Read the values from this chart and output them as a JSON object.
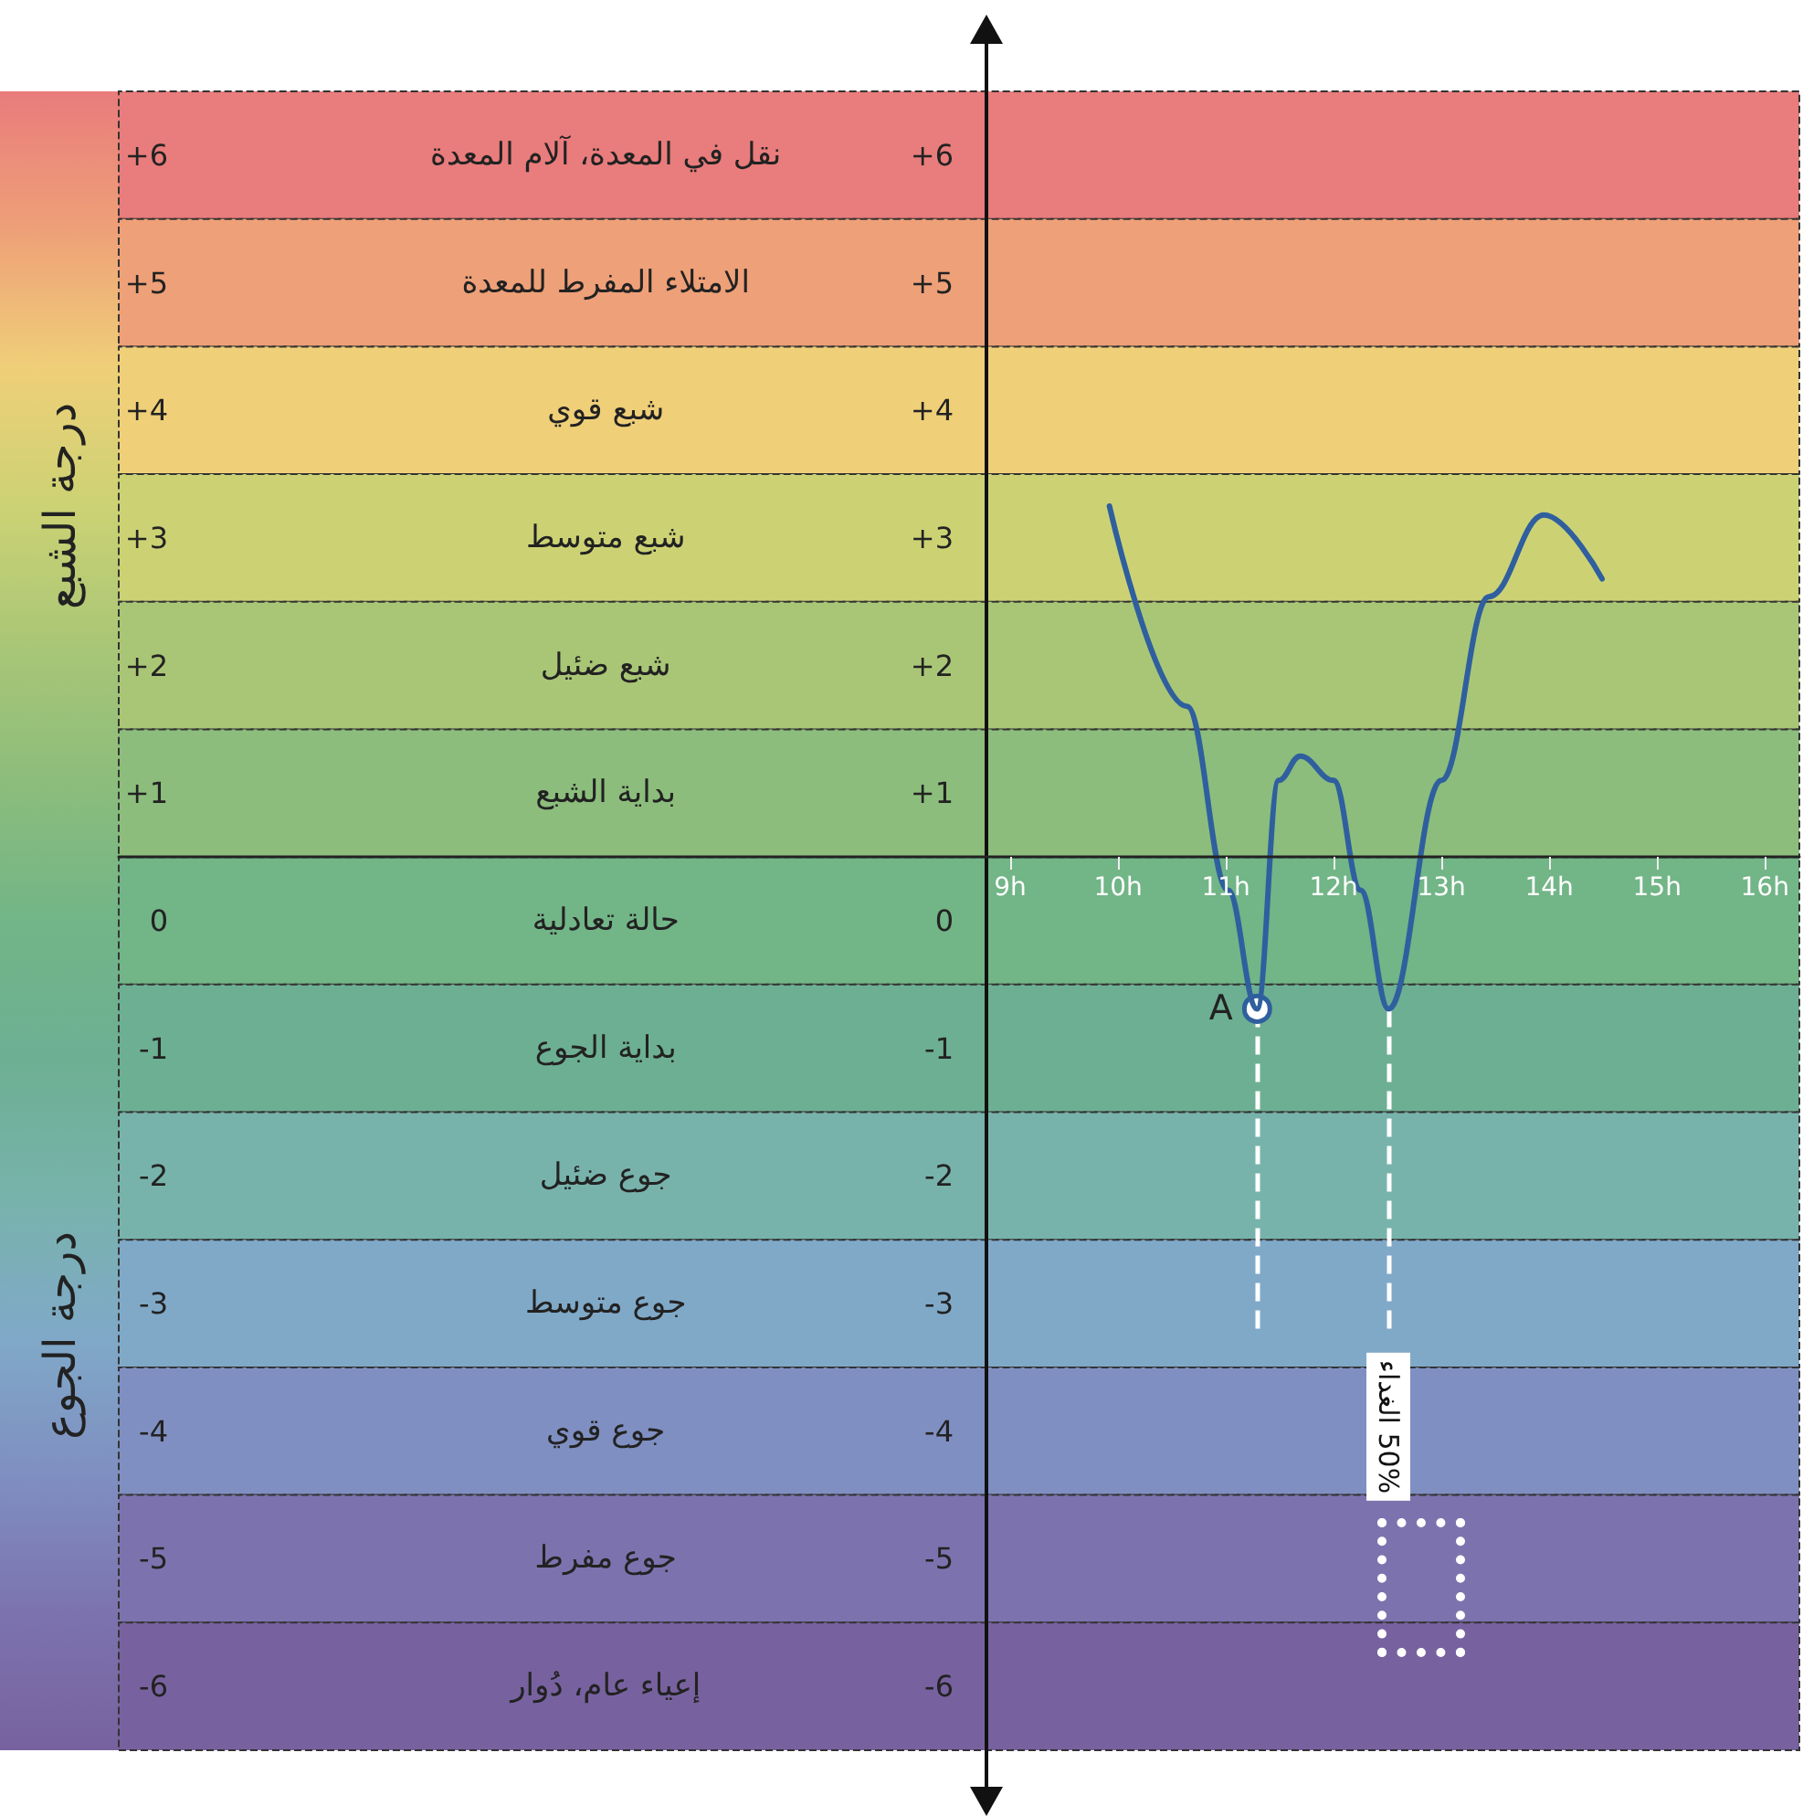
{
  "chart_data": {
    "type": "line",
    "xlim": [
      0.73,
      16.32
    ],
    "xticks": [
      {
        "value": 9,
        "label": "9h"
      },
      {
        "value": 10,
        "label": "10h"
      },
      {
        "value": 11,
        "label": "11h"
      },
      {
        "value": 12,
        "label": "12h"
      },
      {
        "value": 13,
        "label": "13h"
      },
      {
        "value": 14,
        "label": "14h"
      },
      {
        "value": 15,
        "label": "15h"
      },
      {
        "value": 16,
        "label": "16h"
      }
    ],
    "ylim": [
      -6.5,
      6.5
    ],
    "yticks": [
      {
        "value": 6,
        "label": "+6"
      },
      {
        "value": 5,
        "label": "+5"
      },
      {
        "value": 4,
        "label": "+4"
      },
      {
        "value": 3,
        "label": "+3"
      },
      {
        "value": 2,
        "label": "+2"
      },
      {
        "value": 1,
        "label": "+1"
      },
      0,
      -1,
      -2,
      -3,
      -4,
      -5,
      -6
    ],
    "y2lim": [
      -6.5,
      6.5
    ],
    "y2ticks": [
      {
        "value": 6,
        "label": "+6"
      },
      {
        "value": 5,
        "label": "+5"
      },
      {
        "value": 4,
        "label": "+4"
      },
      {
        "value": 3,
        "label": "+3"
      },
      {
        "value": 2,
        "label": "+2"
      },
      {
        "value": 1,
        "label": "+1"
      },
      0,
      -1,
      -2,
      -3,
      -4,
      -5,
      -6
    ],
    "series": [
      {
        "color": "#2f5f9e",
        "x": [
          9.92,
          10.64,
          11.02,
          11.29,
          11.49,
          11.69,
          12.0,
          12.25,
          12.51,
          13.0,
          13.44,
          13.95,
          14.49
        ],
        "values": [
          3.25,
          1.68,
          0.24,
          -0.69,
          1.1,
          1.29,
          1.1,
          0.24,
          -0.69,
          1.1,
          2.54,
          3.18,
          2.68
        ]
      }
    ],
    "marker": "none",
    "line_style": "solid",
    "grid": false,
    "annotations": [
      {
        "text": "A",
        "x": 11.29,
        "y": -0.69
      },
      "درجة الشبع",
      "درجة الجوع"
    ],
    "ref_lines": [
      {
        "axis": "x",
        "value": 11.29,
        "color": "#ffffff",
        "line_style": "dashed"
      },
      {
        "axis": "x",
        "value": 12.51,
        "color": "#ffffff",
        "line_style": "dashed",
        "label": "50% الغداء"
      }
    ],
    "bands": [
      {
        "axis": "y",
        "from": 5.5,
        "to": 6.5,
        "color": "#e97c7c",
        "label": "نقل في المعدة، آلام المعدة"
      },
      {
        "axis": "y",
        "from": 4.5,
        "to": 5.5,
        "color": "#eea078",
        "label": "الامتلاء المفرط للمعدة"
      },
      {
        "axis": "y",
        "from": 3.5,
        "to": 4.5,
        "color": "#efcf78",
        "label": "شبع قوي"
      },
      {
        "axis": "y",
        "from": 2.5,
        "to": 3.5,
        "color": "#ccd274",
        "label": "شبع متوسط"
      },
      {
        "axis": "y",
        "from": 1.5,
        "to": 2.5,
        "color": "#a9c676",
        "label": "شبع ضئيل"
      },
      {
        "axis": "y",
        "from": 0.5,
        "to": 1.5,
        "color": "#8cbd7c",
        "label": "بداية الشبع"
      },
      {
        "axis": "y",
        "from": -0.5,
        "to": 0.5,
        "color": "#72b587",
        "label": "حالة تعادلية"
      },
      {
        "axis": "y",
        "from": -1.5,
        "to": -0.5,
        "color": "#6daf93",
        "label": "بداية الجوع"
      },
      {
        "axis": "y",
        "from": -2.5,
        "to": -1.5,
        "color": "#78b3ab",
        "label": "جوع ضئيل"
      },
      {
        "axis": "y",
        "from": -3.5,
        "to": -2.5,
        "color": "#80a9c8",
        "label": "جوع متوسط"
      },
      {
        "axis": "y",
        "from": -4.5,
        "to": -3.5,
        "color": "#7f8fc1",
        "label": "جوع قوي"
      },
      {
        "axis": "y",
        "from": -5.5,
        "to": -4.5,
        "color": "#7c73ae",
        "label": "جوع مفرط"
      },
      {
        "axis": "y",
        "from": -6.5,
        "to": -5.5,
        "color": "#77629f",
        "label": "إعياء عام، دُوار"
      }
    ]
  }
}
